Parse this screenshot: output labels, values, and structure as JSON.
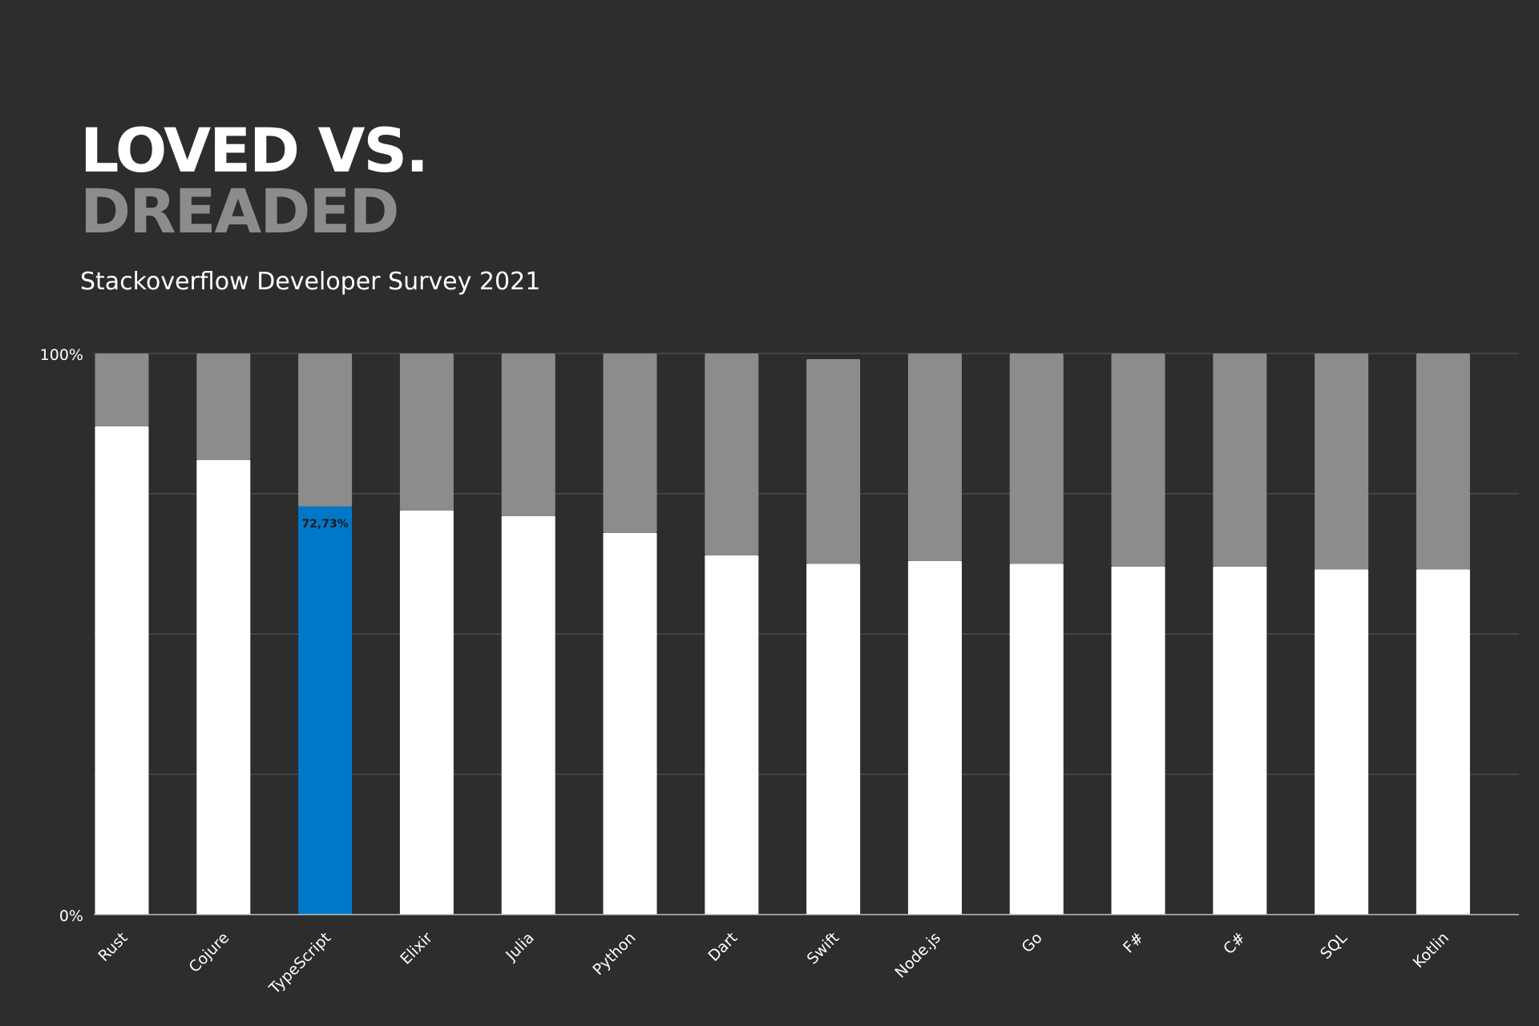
{
  "header": {
    "title_line1": "LOVED VS.",
    "title_line2": "DREADED",
    "subtitle": "Stackoverflow Developer Survey 2021"
  },
  "colors": {
    "background": "#2d2d2d",
    "loved": "#ffffff",
    "dreaded": "#8c8c8c",
    "highlight": "#0078c8",
    "grid": "#5a5a5a"
  },
  "chart_data": {
    "type": "bar",
    "stacked": true,
    "categories": [
      "Rust",
      "Cojure",
      "TypeScript",
      "Elixir",
      "Julia",
      "Python",
      "Dart",
      "Swift",
      "Node.js",
      "Go",
      "F#",
      "C#",
      "SQL",
      "Kotlin"
    ],
    "series": [
      {
        "values": [
          87,
          81,
          72.73,
          72,
          71,
          68,
          64,
          62.5,
          63,
          62.5,
          62,
          62,
          61.5,
          61.5
        ]
      },
      {
        "values": [
          13,
          19,
          27.27,
          28,
          29,
          32,
          36,
          36.5,
          37,
          37.5,
          38,
          38,
          38.5,
          38.5
        ]
      }
    ],
    "highlight": {
      "category": "TypeScript",
      "label": "72,73%"
    },
    "yticks": [
      "0%",
      "100%"
    ],
    "ylim": [
      0,
      100
    ],
    "grid": true,
    "legend": "none"
  }
}
